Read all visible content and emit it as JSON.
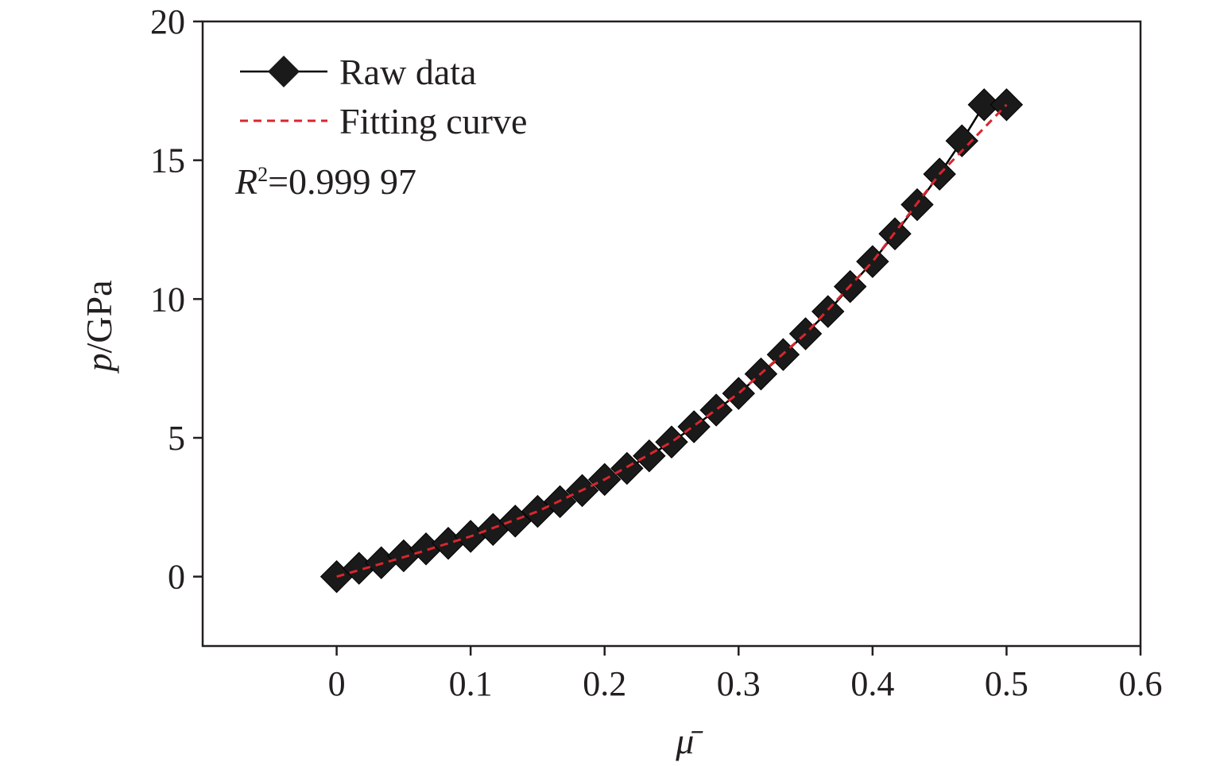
{
  "chart_data": {
    "type": "line",
    "title": "",
    "xlabel": "μ̄",
    "ylabel": {
      "var": "p",
      "unit": "/GPa"
    },
    "xlim": [
      -0.1,
      0.6
    ],
    "ylim": [
      -2.5,
      20
    ],
    "x_ticks": [
      0,
      0.1,
      0.2,
      0.3,
      0.4,
      0.5,
      0.6
    ],
    "x_tick_labels": [
      "0",
      "0.1",
      "0.2",
      "0.3",
      "0.4",
      "0.5",
      "0.6"
    ],
    "y_ticks": [
      0,
      5,
      10,
      15,
      20
    ],
    "y_tick_labels": [
      "0",
      "5",
      "10",
      "15",
      "20"
    ],
    "legend_position": "top-left",
    "grid": false,
    "annotation": {
      "var": "R",
      "sup": "2",
      "text": "=0.999 97"
    },
    "series": [
      {
        "name": "Raw data",
        "style": "solid-diamond",
        "color": "#000000",
        "x": [
          0,
          0.0167,
          0.0333,
          0.05,
          0.0667,
          0.0833,
          0.1,
          0.1167,
          0.1333,
          0.15,
          0.1667,
          0.1833,
          0.2,
          0.2167,
          0.2333,
          0.25,
          0.2667,
          0.2833,
          0.3,
          0.3167,
          0.3333,
          0.35,
          0.3667,
          0.3833,
          0.4,
          0.4167,
          0.4333,
          0.45,
          0.4667,
          0.4833,
          0.5
        ],
        "values": [
          0,
          0.3,
          0.5,
          0.75,
          1.0,
          1.2,
          1.45,
          1.7,
          2.0,
          2.35,
          2.7,
          3.1,
          3.5,
          3.9,
          4.35,
          4.85,
          5.4,
          6.0,
          6.6,
          7.3,
          8.0,
          8.75,
          9.55,
          10.45,
          11.35,
          12.35,
          13.4,
          14.5,
          15.7,
          17.0,
          17.0
        ],
        "note": "x-spaced points"
      },
      {
        "name": "Fitting curve",
        "style": "dashed",
        "color": "#d9262e",
        "x": [
          0,
          0.05,
          0.1,
          0.15,
          0.2,
          0.25,
          0.3,
          0.35,
          0.4,
          0.45,
          0.5
        ],
        "values": [
          0,
          0.7,
          1.45,
          2.35,
          3.5,
          4.85,
          6.6,
          8.75,
          11.35,
          14.5,
          17.0
        ]
      }
    ]
  }
}
